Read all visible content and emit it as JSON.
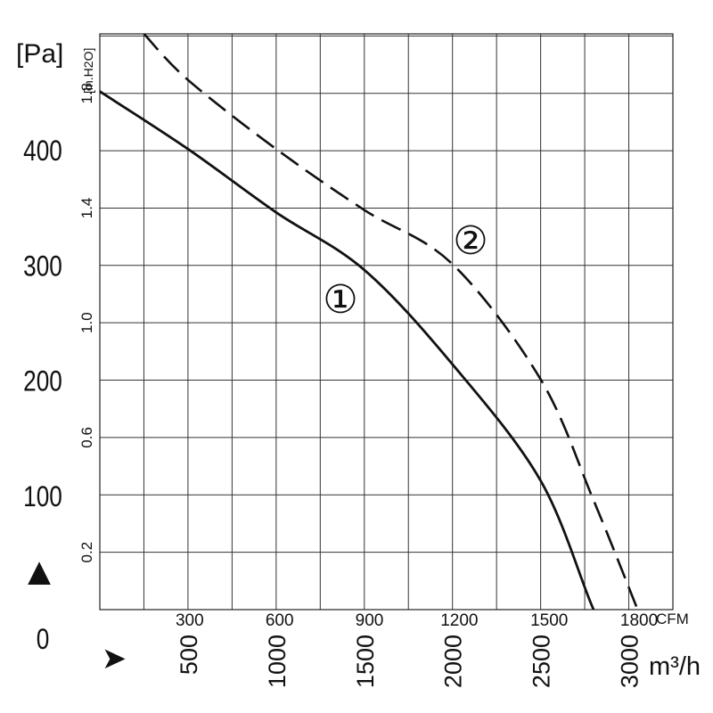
{
  "chart_data": {
    "type": "line",
    "title": "",
    "y_primary_unit": "[Pa]",
    "y_secondary_unit": "[in.H2O]",
    "x_primary_unit": "CFM",
    "x_secondary_unit": "m³/h",
    "y_pa_ticks": [
      "0",
      "100",
      "200",
      "300",
      "400"
    ],
    "y_inh2o_ticks": [
      "0.2",
      "0.6",
      "1.0",
      "1.4",
      "1.8"
    ],
    "x_cfm_ticks": [
      "300",
      "600",
      "900",
      "1200",
      "1500",
      "1800"
    ],
    "x_m3h_ticks": [
      "500",
      "1000",
      "1500",
      "2000",
      "2500",
      "3000"
    ],
    "xlim_m3h": [
      0,
      3250
    ],
    "ylim_pa": [
      0,
      500
    ],
    "grid": true,
    "series": [
      {
        "name": "1",
        "style": "solid",
        "x": [
          0,
          500,
          1000,
          1500,
          2000,
          2500,
          2800,
          2950
        ],
        "y": [
          450,
          400,
          345,
          295,
          213,
          112,
          0,
          -43
        ]
      },
      {
        "name": "2",
        "style": "dashed",
        "x": [
          250,
          500,
          1000,
          1500,
          2000,
          2500,
          2800,
          3050
        ],
        "y": [
          500,
          460,
          400,
          347,
          300,
          200,
          95,
          0
        ]
      }
    ],
    "series_markers": [
      "①",
      "②"
    ]
  },
  "direction_up_glyph": "▲",
  "direction_right_glyph": "➤"
}
